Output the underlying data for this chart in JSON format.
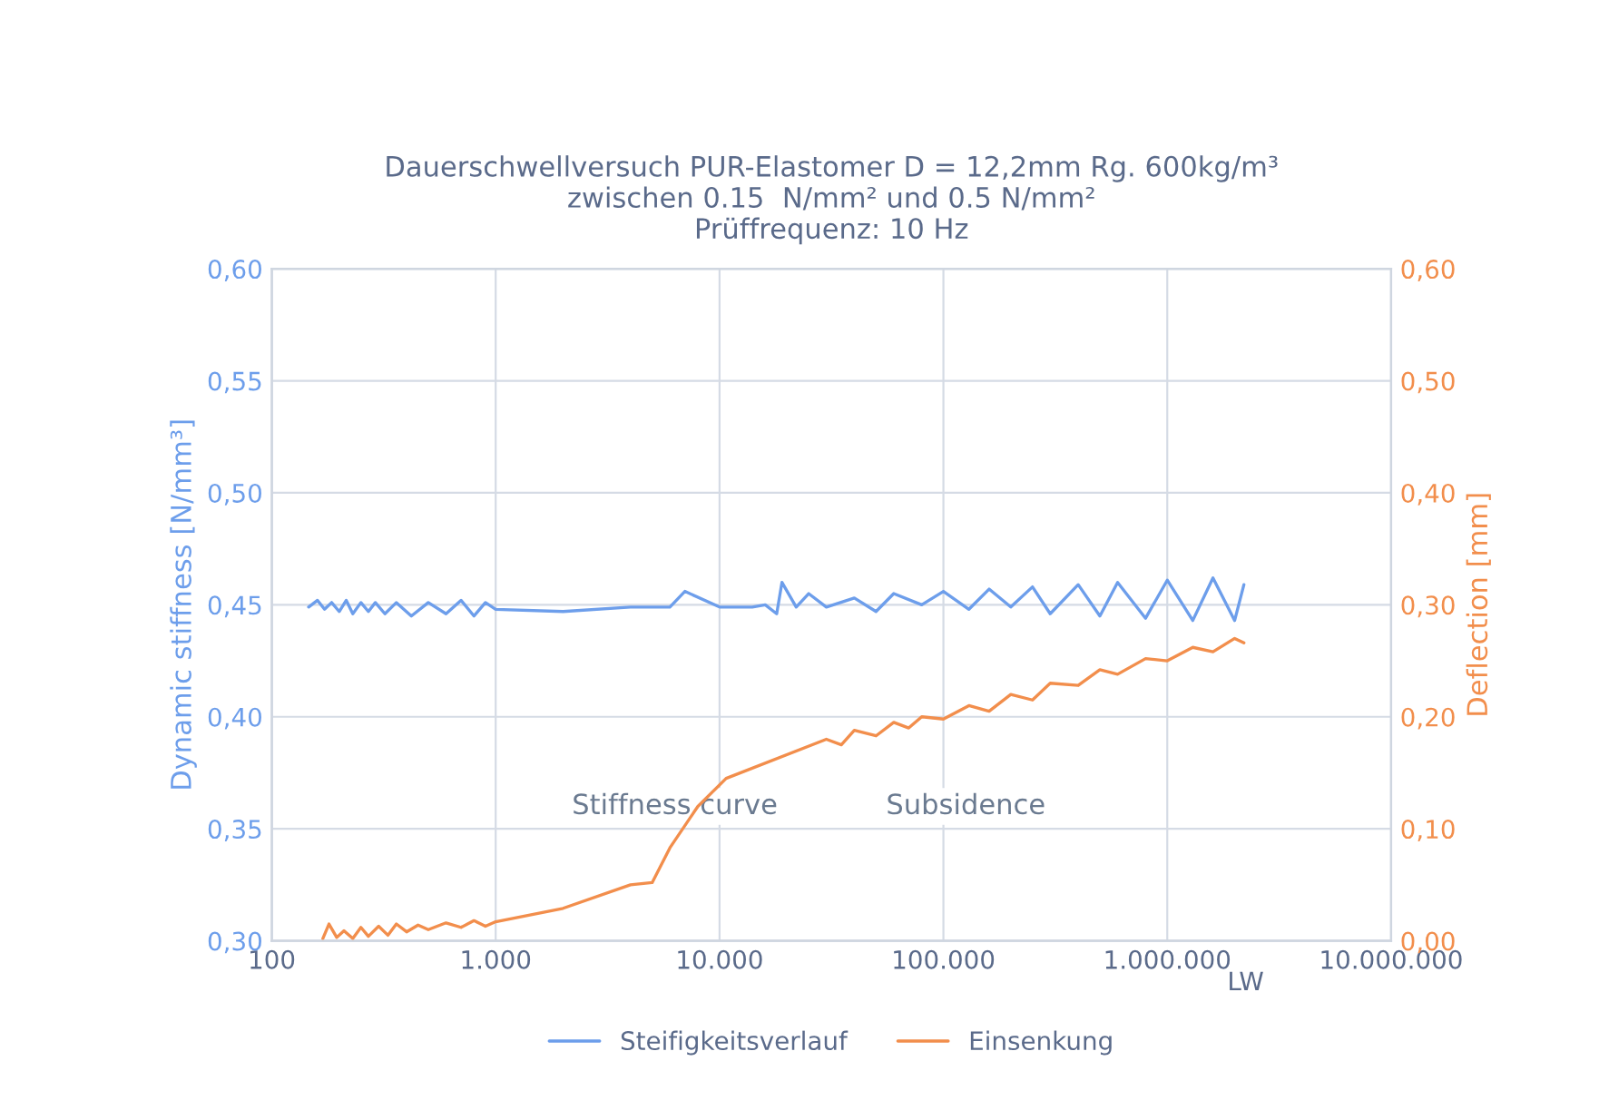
{
  "chart_data": {
    "type": "line",
    "title": "Dauerschwellversuch PUR-Elastomer D = 12,2mm Rg. 600kg/m³\nzwischen 0.15  N/mm² und 0.5 N/mm²\nPrüffrequenz: 10 Hz",
    "xlabel": "LW",
    "ylabel": "Dynamic stiffness [N/mm³]",
    "y2label": "Deflection [mm]",
    "log": "x",
    "grid": true,
    "legend": "bottom",
    "xlim": [
      100,
      10000000
    ],
    "xticks": [
      {
        "value": 100,
        "label": "100"
      },
      {
        "value": 1000,
        "label": "1.000"
      },
      {
        "value": 10000,
        "label": "10.000"
      },
      {
        "value": 100000,
        "label": "100.000"
      },
      {
        "value": 1000000,
        "label": "1.000.000"
      },
      {
        "value": 10000000,
        "label": "10.000.000"
      }
    ],
    "ylim": [
      0.3,
      0.6
    ],
    "yticks": [
      {
        "value": 0.3,
        "label": "0,30"
      },
      {
        "value": 0.35,
        "label": "0,35"
      },
      {
        "value": 0.4,
        "label": "0,40"
      },
      {
        "value": 0.45,
        "label": "0,45"
      },
      {
        "value": 0.5,
        "label": "0,50"
      },
      {
        "value": 0.55,
        "label": "0,55"
      },
      {
        "value": 0.6,
        "label": "0,60"
      }
    ],
    "y2lim": [
      0,
      0.6
    ],
    "y2ticks": [
      {
        "value": 0,
        "label": "0,00"
      },
      {
        "value": 0.1,
        "label": "0,10"
      },
      {
        "value": 0.2,
        "label": "0,20"
      },
      {
        "value": 0.3,
        "label": "0,30"
      },
      {
        "value": 0.4,
        "label": "0,40"
      },
      {
        "value": 0.5,
        "label": "0,50"
      },
      {
        "value": 0.6,
        "label": "0,60"
      }
    ],
    "annotations": [
      "Stiffness curve",
      "Subsidence"
    ],
    "series": [
      {
        "name": "Steifigkeitsverlauf",
        "color": "#6d9eeb",
        "x": [
          146,
          160,
          172,
          185,
          200,
          215,
          230,
          250,
          270,
          290,
          320,
          360,
          420,
          500,
          600,
          700,
          800,
          900,
          1000,
          2000,
          4000,
          6000,
          7000,
          10000,
          14000,
          16000,
          18000,
          19000,
          22000,
          25000,
          30000,
          40000,
          50000,
          60000,
          80000,
          100000,
          130000,
          160000,
          200000,
          250000,
          300000,
          400000,
          500000,
          600000,
          800000,
          1000000,
          1300000,
          1600000,
          2000000,
          2200000
        ],
        "values": [
          0.449,
          0.452,
          0.448,
          0.451,
          0.447,
          0.452,
          0.446,
          0.451,
          0.447,
          0.451,
          0.446,
          0.451,
          0.445,
          0.451,
          0.446,
          0.452,
          0.445,
          0.451,
          0.448,
          0.447,
          0.449,
          0.449,
          0.456,
          0.449,
          0.449,
          0.45,
          0.446,
          0.46,
          0.449,
          0.455,
          0.449,
          0.453,
          0.447,
          0.455,
          0.45,
          0.456,
          0.448,
          0.457,
          0.449,
          0.458,
          0.446,
          0.459,
          0.445,
          0.46,
          0.444,
          0.461,
          0.443,
          0.462,
          0.443,
          0.459
        ]
      },
      {
        "name": "Einsenkung",
        "color": "#f28e4c",
        "axis": "y2",
        "x": [
          169,
          180,
          195,
          210,
          230,
          250,
          270,
          300,
          330,
          360,
          400,
          450,
          500,
          600,
          700,
          800,
          900,
          1000,
          2000,
          4000,
          5000,
          6000,
          8000,
          10700,
          30000,
          35000,
          40000,
          50000,
          60000,
          70000,
          80000,
          100000,
          130000,
          160000,
          200000,
          250000,
          300000,
          400000,
          500000,
          600000,
          800000,
          1000000,
          1300000,
          1600000,
          2000000,
          2200000
        ],
        "values": [
          0.002,
          0.015,
          0.003,
          0.009,
          0.002,
          0.012,
          0.004,
          0.013,
          0.005,
          0.015,
          0.008,
          0.014,
          0.01,
          0.016,
          0.012,
          0.018,
          0.013,
          0.017,
          0.029,
          0.05,
          0.052,
          0.083,
          0.12,
          0.145,
          0.18,
          0.175,
          0.188,
          0.183,
          0.195,
          0.19,
          0.2,
          0.198,
          0.21,
          0.205,
          0.22,
          0.215,
          0.23,
          0.228,
          0.242,
          0.238,
          0.252,
          0.25,
          0.262,
          0.258,
          0.27,
          0.266
        ]
      }
    ]
  }
}
